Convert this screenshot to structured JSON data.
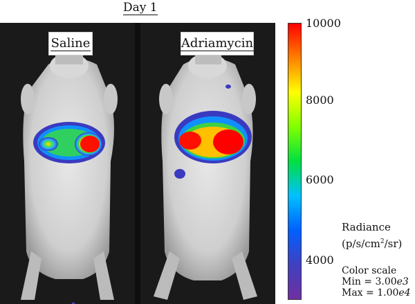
{
  "figure": {
    "title": "Day 1",
    "panels": [
      {
        "label": "Saline"
      },
      {
        "label": "Adriamycin"
      }
    ]
  },
  "colorbar": {
    "ticks": [
      "10000",
      "8000",
      "6000",
      "4000"
    ],
    "unit_label": "Radiance",
    "unit_base": "(p/s/cm",
    "unit_exp": "2",
    "unit_tail": "/sr)",
    "scale_title": "Color scale",
    "min_label": "Min = 3.00",
    "min_exp": "e3",
    "max_label": "Max = 1.00",
    "max_exp": "e4",
    "colors": [
      "#ff0000",
      "#ff8000",
      "#ffff00",
      "#80ff00",
      "#00e040",
      "#00c0ff",
      "#0060ff",
      "#4040c0",
      "#7030a0"
    ]
  }
}
